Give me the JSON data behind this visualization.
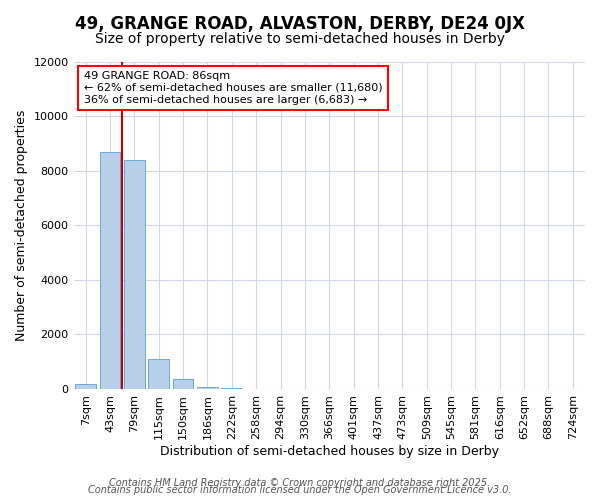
{
  "title": "49, GRANGE ROAD, ALVASTON, DERBY, DE24 0JX",
  "subtitle": "Size of property relative to semi-detached houses in Derby",
  "xlabel": "Distribution of semi-detached houses by size in Derby",
  "ylabel": "Number of semi-detached properties",
  "categories": [
    "7sqm",
    "43sqm",
    "79sqm",
    "115sqm",
    "150sqm",
    "186sqm",
    "222sqm",
    "258sqm",
    "294sqm",
    "330sqm",
    "366sqm",
    "401sqm",
    "437sqm",
    "473sqm",
    "509sqm",
    "545sqm",
    "581sqm",
    "616sqm",
    "652sqm",
    "688sqm",
    "724sqm"
  ],
  "values": [
    200,
    8700,
    8400,
    1100,
    350,
    80,
    40,
    0,
    0,
    0,
    0,
    0,
    0,
    0,
    0,
    0,
    0,
    0,
    0,
    0,
    0
  ],
  "bar_color": "#b8d0ea",
  "bar_edge_color": "#5a9fd4",
  "ylim": [
    0,
    12000
  ],
  "yticks": [
    0,
    2000,
    4000,
    6000,
    8000,
    10000,
    12000
  ],
  "red_line_x": 1.5,
  "red_line_color": "#cc0000",
  "ann_line1": "49 GRANGE ROAD: 86sqm",
  "ann_line2": "← 62% of semi-detached houses are smaller (11,680)",
  "ann_line3": "36% of semi-detached houses are larger (6,683) →",
  "footer1": "Contains HM Land Registry data © Crown copyright and database right 2025.",
  "footer2": "Contains public sector information licensed under the Open Government Licence v3.0.",
  "bg_color": "#ffffff",
  "plot_bg_color": "#ffffff",
  "grid_color": "#d0d8e8",
  "title_fontsize": 12,
  "subtitle_fontsize": 10,
  "tick_fontsize": 8,
  "ylabel_fontsize": 9,
  "xlabel_fontsize": 9,
  "footer_fontsize": 7
}
